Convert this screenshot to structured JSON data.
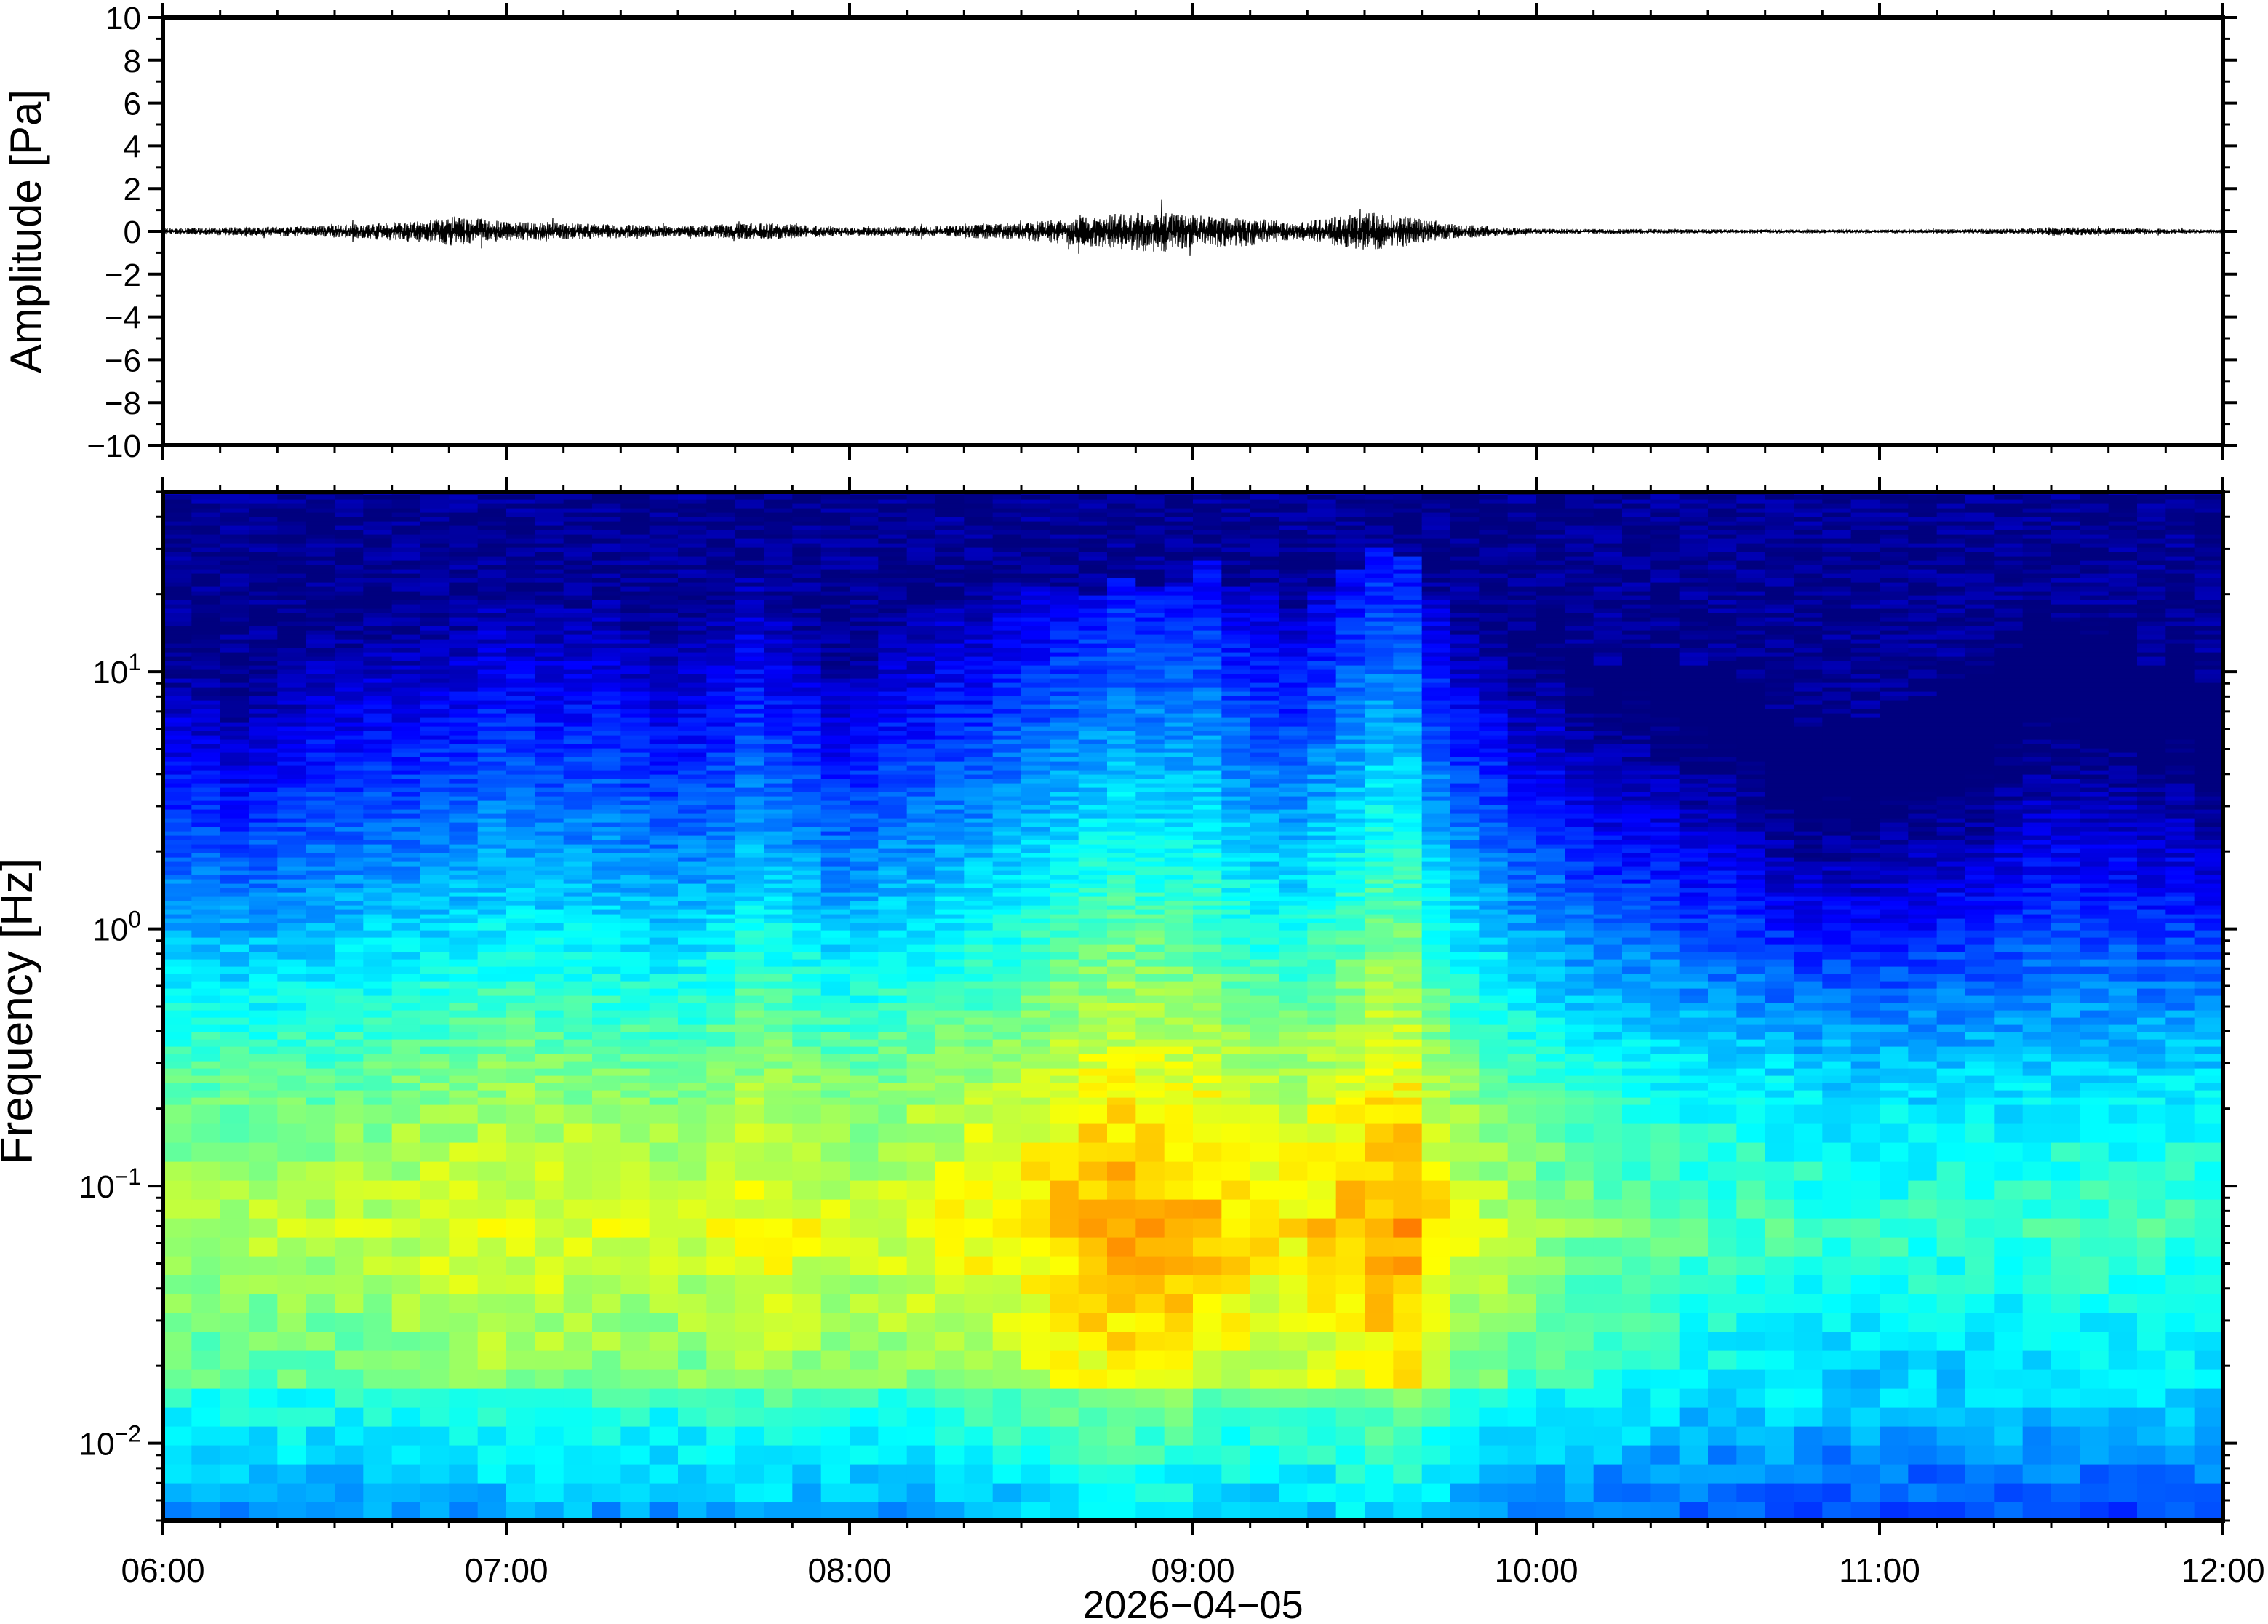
{
  "chart_data": [
    {
      "type": "line",
      "panel": "waveform",
      "ylabel": "Amplitude [Pa]",
      "ylim": [
        -10,
        10
      ],
      "yticks": [
        10,
        8,
        6,
        4,
        2,
        0,
        -2,
        -4,
        -6,
        -8,
        -10
      ],
      "ytick_labels": [
        "10",
        "8",
        "6",
        "4",
        "2",
        "0",
        "−2",
        "−4",
        "−6",
        "−8",
        "−10"
      ],
      "xlim_hours": [
        6,
        12
      ],
      "series": [
        {
          "color": "#000000",
          "envelope": {
            "x_hours": [
              6.0,
              6.25,
              6.5,
              6.75,
              6.85,
              7.0,
              7.25,
              7.5,
              7.75,
              8.0,
              8.25,
              8.5,
              8.75,
              8.9,
              9.0,
              9.15,
              9.3,
              9.5,
              9.6,
              9.75,
              10.0,
              10.5,
              11.0,
              11.4,
              11.5,
              12.0
            ],
            "amplitude_pa": [
              0.15,
              0.2,
              0.3,
              0.5,
              0.7,
              0.45,
              0.35,
              0.25,
              0.4,
              0.2,
              0.25,
              0.4,
              0.8,
              1.0,
              0.75,
              0.7,
              0.4,
              0.9,
              0.75,
              0.35,
              0.12,
              0.1,
              0.08,
              0.12,
              0.2,
              0.08
            ]
          }
        }
      ]
    },
    {
      "type": "heatmap",
      "panel": "spectrogram",
      "ylabel": "Frequency [Hz]",
      "xlabel": "2026−04−05",
      "yscale": "log",
      "ylim_hz": [
        0.005,
        50
      ],
      "yticks": [
        {
          "base": "10",
          "exp": "1",
          "value": 10
        },
        {
          "base": "10",
          "exp": "0",
          "value": 1
        },
        {
          "base": "10",
          "exp": "−1",
          "value": 0.1
        },
        {
          "base": "10",
          "exp": "−2",
          "value": 0.01
        }
      ],
      "xticks": [
        {
          "label": "06:00",
          "hour": 6
        },
        {
          "label": "07:00",
          "hour": 7
        },
        {
          "label": "08:00",
          "hour": 8
        },
        {
          "label": "09:00",
          "hour": 9
        },
        {
          "label": "10:00",
          "hour": 10
        },
        {
          "label": "11:00",
          "hour": 11
        },
        {
          "label": "12:00",
          "hour": 12
        }
      ],
      "colormap": [
        "#00007f",
        "#0000ff",
        "#007fff",
        "#00ffff",
        "#7fff7f",
        "#ffff00",
        "#ff7f00",
        "#ff0000"
      ],
      "upper_edge_hz": {
        "x_hours": [
          6.0,
          6.2,
          6.4,
          6.8,
          7.0,
          7.3,
          7.6,
          7.75,
          7.9,
          8.2,
          8.5,
          8.8,
          9.1,
          9.3,
          9.45,
          9.6,
          9.75,
          10.0,
          10.2,
          10.5,
          10.7,
          10.9,
          11.1,
          11.3,
          11.4,
          11.6,
          11.8,
          12.0
        ],
        "hz": [
          15,
          12,
          17,
          20,
          21,
          19,
          15,
          22,
          13,
          17,
          20,
          24,
          25,
          18,
          28,
          29,
          18,
          16,
          11,
          12,
          7,
          6,
          9,
          8,
          16,
          16,
          11,
          9
        ]
      },
      "low_frequency_peak": {
        "x_hours": [
          6.0,
          6.5,
          7.0,
          7.5,
          7.75,
          8.0,
          8.5,
          8.75,
          9.0,
          9.25,
          9.5,
          9.6,
          9.75,
          10.0,
          10.5,
          11.0,
          11.5,
          12.0
        ],
        "relative_level": [
          0.55,
          0.56,
          0.62,
          0.58,
          0.64,
          0.58,
          0.66,
          0.74,
          0.72,
          0.64,
          0.72,
          0.76,
          0.62,
          0.52,
          0.44,
          0.4,
          0.42,
          0.42
        ]
      }
    }
  ]
}
